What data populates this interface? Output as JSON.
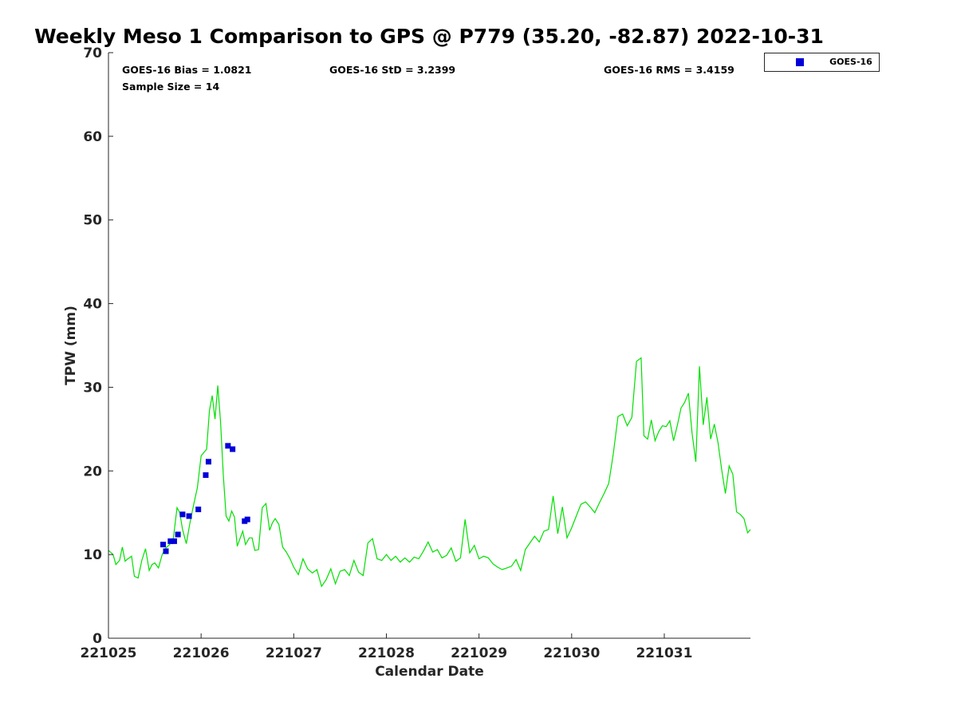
{
  "chart_data": {
    "type": "scatter",
    "title": "Weekly Meso 1 Comparison to GPS @ P779 (35.20, -82.87) 2022-10-31",
    "xlabel": "Calendar Date",
    "ylabel": "TPW (mm)",
    "xlim": [
      221025,
      221031.93
    ],
    "ylim": [
      0,
      70
    ],
    "x_ticks": [
      221025,
      221026,
      221027,
      221028,
      221029,
      221030,
      221031
    ],
    "x_tick_labels": [
      "221025",
      "221026",
      "221027",
      "221028",
      "221029",
      "221030",
      "221031"
    ],
    "y_ticks": [
      0,
      10,
      20,
      30,
      40,
      50,
      60,
      70
    ],
    "y_tick_labels": [
      "0",
      "10",
      "20",
      "30",
      "40",
      "50",
      "60",
      "70"
    ],
    "grid": false,
    "legend_position": "top-right, outside plot",
    "stats": {
      "bias": "GOES-16 Bias = 1.0821",
      "std": "GOES-16 StD = 3.2399",
      "rms": "GOES-16 RMS = 3.4159",
      "sample_size": "Sample Size = 14"
    },
    "series": [
      {
        "name": "GOES-16",
        "kind": "scatter",
        "marker": "square",
        "color": "#0000d8",
        "x": [
          221025.59,
          221025.62,
          221025.67,
          221025.71,
          221025.75,
          221025.8,
          221025.87,
          221025.97,
          221026.05,
          221026.08,
          221026.29,
          221026.34,
          221026.47,
          221026.5
        ],
        "y": [
          11.2,
          10.4,
          11.6,
          11.6,
          12.4,
          14.8,
          14.6,
          15.4,
          19.5,
          21.1,
          23.0,
          22.6,
          14.0,
          14.2
        ]
      },
      {
        "kind": "line",
        "color": "#00e000",
        "x": [
          221025.0,
          221025.05,
          221025.08,
          221025.12,
          221025.15,
          221025.18,
          221025.2,
          221025.25,
          221025.28,
          221025.32,
          221025.36,
          221025.4,
          221025.44,
          221025.47,
          221025.5,
          221025.54,
          221025.58,
          221025.62,
          221025.66,
          221025.7,
          221025.74,
          221025.77,
          221025.8,
          221025.84,
          221025.88,
          221025.92,
          221025.96,
          221026.0,
          221026.03,
          221026.06,
          221026.09,
          221026.12,
          221026.15,
          221026.18,
          221026.21,
          221026.24,
          221026.27,
          221026.3,
          221026.33,
          221026.36,
          221026.39,
          221026.42,
          221026.45,
          221026.48,
          221026.52,
          221026.55,
          221026.58,
          221026.62,
          221026.66,
          221026.7,
          221026.74,
          221026.77,
          221026.8,
          221026.84,
          221026.88,
          221026.92,
          221026.96,
          221027.0,
          221027.05,
          221027.1,
          221027.15,
          221027.2,
          221027.25,
          221027.3,
          221027.35,
          221027.4,
          221027.45,
          221027.5,
          221027.55,
          221027.6,
          221027.65,
          221027.7,
          221027.75,
          221027.8,
          221027.85,
          221027.9,
          221027.95,
          221028.0,
          221028.05,
          221028.1,
          221028.15,
          221028.2,
          221028.25,
          221028.3,
          221028.35,
          221028.4,
          221028.45,
          221028.5,
          221028.55,
          221028.6,
          221028.65,
          221028.7,
          221028.75,
          221028.8,
          221028.85,
          221028.9,
          221028.95,
          221029.0,
          221029.05,
          221029.1,
          221029.15,
          221029.2,
          221029.25,
          221029.3,
          221029.35,
          221029.4,
          221029.45,
          221029.5,
          221029.55,
          221029.6,
          221029.65,
          221029.7,
          221029.75,
          221029.8,
          221029.85,
          221029.9,
          221029.95,
          221030.0,
          221030.05,
          221030.1,
          221030.15,
          221030.2,
          221030.25,
          221030.3,
          221030.35,
          221030.4,
          221030.45,
          221030.5,
          221030.55,
          221030.6,
          221030.65,
          221030.7,
          221030.75,
          221030.78,
          221030.82,
          221030.86,
          221030.9,
          221030.94,
          221030.98,
          221031.02,
          221031.06,
          221031.1,
          221031.14,
          221031.18,
          221031.22,
          221031.26,
          221031.3,
          221031.34,
          221031.38,
          221031.42,
          221031.46,
          221031.5,
          221031.54,
          221031.58,
          221031.62,
          221031.66,
          221031.7,
          221031.74,
          221031.78,
          221031.82,
          221031.86,
          221031.9,
          221031.93
        ],
        "y": [
          10.5,
          10.0,
          8.8,
          9.3,
          10.9,
          9.2,
          9.4,
          9.8,
          7.4,
          7.2,
          9.3,
          10.7,
          8.1,
          8.8,
          9.0,
          8.4,
          10.0,
          10.8,
          11.2,
          11.9,
          15.6,
          15.0,
          13.0,
          11.3,
          13.8,
          16.0,
          18.0,
          21.8,
          22.2,
          22.6,
          27.2,
          29.0,
          26.2,
          30.2,
          25.8,
          19.5,
          14.6,
          14.0,
          15.2,
          14.5,
          11.0,
          11.9,
          12.8,
          11.2,
          12.0,
          12.0,
          10.5,
          10.6,
          15.6,
          16.1,
          12.9,
          13.8,
          14.3,
          13.6,
          10.9,
          10.3,
          9.5,
          8.5,
          7.6,
          9.5,
          8.3,
          7.8,
          8.2,
          6.2,
          7.0,
          8.3,
          6.5,
          8.0,
          8.2,
          7.5,
          9.3,
          7.9,
          7.5,
          11.4,
          11.9,
          9.5,
          9.3,
          10.0,
          9.3,
          9.8,
          9.1,
          9.6,
          9.1,
          9.7,
          9.5,
          10.4,
          11.5,
          10.3,
          10.6,
          9.6,
          9.9,
          10.8,
          9.2,
          9.6,
          14.2,
          10.2,
          11.1,
          9.5,
          9.8,
          9.6,
          8.9,
          8.5,
          8.2,
          8.4,
          8.6,
          9.4,
          8.1,
          10.6,
          11.4,
          12.2,
          11.5,
          12.8,
          13.0,
          17.0,
          12.5,
          15.7,
          12.0,
          13.2,
          14.6,
          16.0,
          16.3,
          15.7,
          15.0,
          16.2,
          17.3,
          18.5,
          22.1,
          26.5,
          26.8,
          25.4,
          26.4,
          33.1,
          33.5,
          24.2,
          23.8,
          26.1,
          23.6,
          24.7,
          25.4,
          25.3,
          26.0,
          23.6,
          25.4,
          27.5,
          28.2,
          29.3,
          24.5,
          21.1,
          32.5,
          25.5,
          28.8,
          23.8,
          25.6,
          23.4,
          20.1,
          17.3,
          20.6,
          19.6,
          15.1,
          14.8,
          14.3,
          12.6,
          13.0
        ]
      }
    ]
  }
}
